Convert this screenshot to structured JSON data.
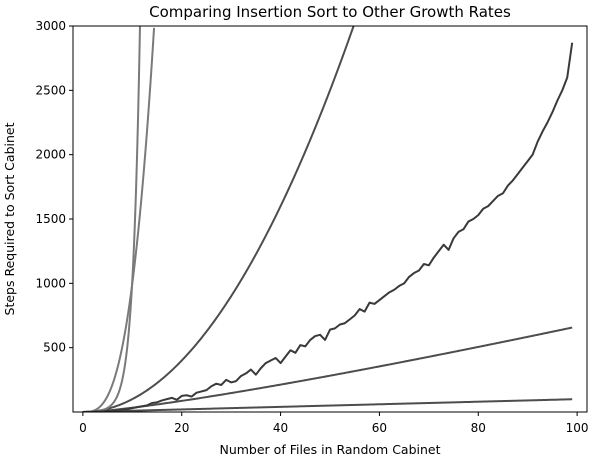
{
  "chart_data": {
    "type": "line",
    "title": "Comparing Insertion Sort to Other Growth Rates",
    "xlabel": "Number of Files in Random Cabinet",
    "ylabel": "Steps Required to Sort Cabinet",
    "xlim": [
      -2,
      102
    ],
    "ylim": [
      0,
      3000
    ],
    "x_ticks": [
      0,
      20,
      40,
      60,
      80,
      100
    ],
    "y_ticks": [
      500,
      1000,
      1500,
      2000,
      2500,
      3000
    ],
    "grid": false,
    "legend": "none",
    "series": [
      {
        "kind": "function",
        "fn": "n",
        "color": "#4d4d4d",
        "x": [
          0,
          99
        ],
        "y": [
          0,
          99
        ]
      },
      {
        "kind": "function",
        "fn": "n*log2(n)",
        "color": "#4d4d4d",
        "x": [
          1,
          20,
          40,
          60,
          80,
          99
        ],
        "y": [
          0,
          86,
          213,
          354,
          506,
          656
        ]
      },
      {
        "kind": "function",
        "fn": "n*n",
        "color": "#4d4d4d",
        "x": [
          0,
          20,
          40,
          54.8
        ],
        "y": [
          0,
          400,
          1600,
          3000
        ]
      },
      {
        "kind": "function",
        "fn": "n*n*n",
        "color": "#7a7a7a",
        "x": [
          0,
          5,
          10,
          14.4
        ],
        "y": [
          0,
          125,
          1000,
          3000
        ]
      },
      {
        "kind": "function",
        "fn": "2^n",
        "color": "#7a7a7a",
        "x": [
          0,
          4,
          8,
          11.55
        ],
        "y": [
          1,
          16,
          256,
          3000
        ]
      },
      {
        "kind": "measured",
        "color": "#3a3a3a",
        "x": [
          0,
          1,
          2,
          3,
          4,
          5,
          6,
          7,
          8,
          9,
          10,
          11,
          12,
          13,
          14,
          15,
          16,
          17,
          18,
          19,
          20,
          21,
          22,
          23,
          24,
          25,
          26,
          27,
          28,
          29,
          30,
          31,
          32,
          33,
          34,
          35,
          36,
          37,
          38,
          39,
          40,
          41,
          42,
          43,
          44,
          45,
          46,
          47,
          48,
          49,
          50,
          51,
          52,
          53,
          54,
          55,
          56,
          57,
          58,
          59,
          60,
          61,
          62,
          63,
          64,
          65,
          66,
          67,
          68,
          69,
          70,
          71,
          72,
          73,
          74,
          75,
          76,
          77,
          78,
          79,
          80,
          81,
          82,
          83,
          84,
          85,
          86,
          87,
          88,
          89,
          90,
          91,
          92,
          93,
          94,
          95,
          96,
          97,
          98,
          99
        ],
        "y": [
          0,
          1,
          2,
          4,
          5,
          8,
          10,
          13,
          18,
          22,
          30,
          38,
          45,
          52,
          70,
          75,
          90,
          100,
          110,
          95,
          125,
          130,
          120,
          150,
          160,
          170,
          200,
          220,
          210,
          250,
          230,
          240,
          280,
          300,
          330,
          290,
          340,
          380,
          400,
          420,
          380,
          430,
          480,
          460,
          520,
          510,
          560,
          590,
          600,
          560,
          640,
          650,
          680,
          690,
          720,
          750,
          800,
          780,
          850,
          840,
          870,
          900,
          930,
          950,
          980,
          1000,
          1050,
          1080,
          1100,
          1150,
          1140,
          1200,
          1250,
          1300,
          1260,
          1350,
          1400,
          1420,
          1480,
          1500,
          1530,
          1580,
          1600,
          1640,
          1680,
          1700,
          1760,
          1800,
          1850,
          1900,
          1950,
          2000,
          2100,
          2180,
          2250,
          2330,
          2420,
          2500,
          2600,
          2870
        ]
      }
    ]
  }
}
